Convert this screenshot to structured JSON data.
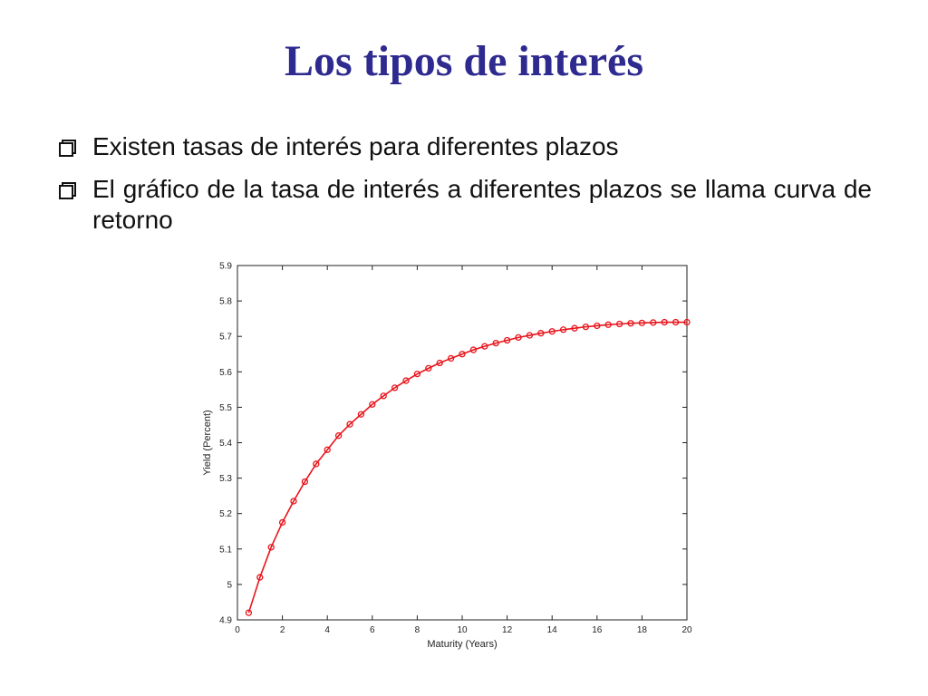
{
  "slide": {
    "title": "Los tipos de interés",
    "bullets": [
      {
        "text": "Existen tasas de interés para diferentes plazos"
      },
      {
        "text": "El gráfico de la tasa de interés a diferentes plazos se llama curva de retorno"
      }
    ]
  },
  "chart_data": {
    "type": "line",
    "xlabel": "Maturity (Years)",
    "ylabel": "Yield (Percent)",
    "xlim": [
      0,
      20
    ],
    "ylim": [
      4.9,
      5.9
    ],
    "xticks": [
      0,
      2,
      4,
      6,
      8,
      10,
      12,
      14,
      16,
      18,
      20
    ],
    "yticks": [
      4.9,
      5,
      5.1,
      5.2,
      5.3,
      5.4,
      5.5,
      5.6,
      5.7,
      5.8,
      5.9
    ],
    "grid": false,
    "marker": "circle",
    "color": "#e8141b",
    "x": [
      0.5,
      1,
      1.5,
      2,
      2.5,
      3,
      3.5,
      4,
      4.5,
      5,
      5.5,
      6,
      6.5,
      7,
      7.5,
      8,
      8.5,
      9,
      9.5,
      10,
      10.5,
      11,
      11.5,
      12,
      12.5,
      13,
      13.5,
      14,
      14.5,
      15,
      15.5,
      16,
      16.5,
      17,
      17.5,
      18,
      18.5,
      19,
      19.5,
      20
    ],
    "y": [
      4.92,
      5.02,
      5.105,
      5.175,
      5.235,
      5.29,
      5.34,
      5.38,
      5.42,
      5.452,
      5.48,
      5.508,
      5.532,
      5.555,
      5.575,
      5.594,
      5.61,
      5.625,
      5.638,
      5.65,
      5.662,
      5.672,
      5.681,
      5.689,
      5.697,
      5.703,
      5.709,
      5.714,
      5.719,
      5.723,
      5.727,
      5.73,
      5.733,
      5.735,
      5.737,
      5.738,
      5.739,
      5.74,
      5.74,
      5.74
    ]
  }
}
